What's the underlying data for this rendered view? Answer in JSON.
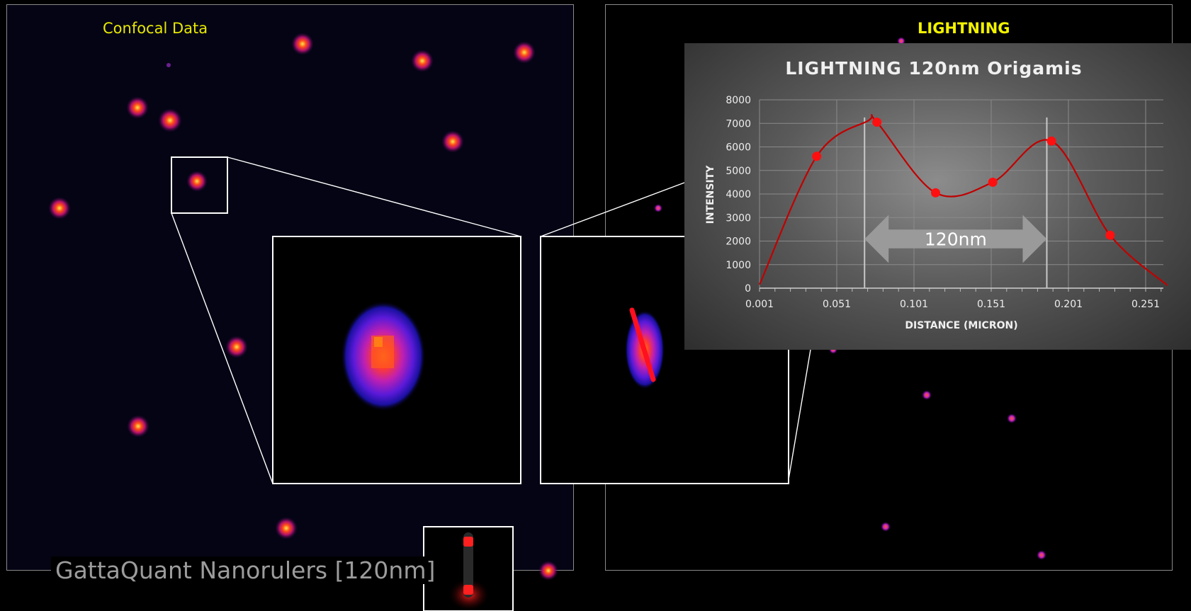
{
  "labels": {
    "left_panel": "Confocal Data",
    "right_panel": "LIGHTNING",
    "footer": "GattaQuant Nanorulers [120nm]"
  },
  "colors": {
    "confocal_label": "#e8e800",
    "lightning_label": "#f2f200",
    "curve": "#c00000",
    "marker": "#ff1010",
    "arrow": "#9a9a9a"
  },
  "chart_data": {
    "type": "line",
    "title": "LIGHTNING 120nm Origamis",
    "xlabel": "DISTANCE (MICRON)",
    "ylabel": "INTENSITY",
    "x_ticks": [
      "0.001",
      "0.051",
      "0.101",
      "0.151",
      "0.201",
      "0.251"
    ],
    "y_ticks": [
      "0",
      "1000",
      "2000",
      "3000",
      "4000",
      "5000",
      "6000",
      "7000",
      "8000"
    ],
    "xlim": [
      0.001,
      0.265
    ],
    "ylim": [
      0,
      8000
    ],
    "grid": true,
    "series": [
      {
        "points": [
          {
            "x": 0.001,
            "y": 150
          },
          {
            "x": 0.038,
            "y": 5600
          },
          {
            "x": 0.071,
            "y": 7100
          },
          {
            "x": 0.077,
            "y": 7050
          },
          {
            "x": 0.115,
            "y": 4050
          },
          {
            "x": 0.152,
            "y": 4500
          },
          {
            "x": 0.19,
            "y": 6250
          },
          {
            "x": 0.228,
            "y": 2250
          },
          {
            "x": 0.265,
            "y": 120
          }
        ],
        "markers": [
          {
            "x": 0.038,
            "y": 5600
          },
          {
            "x": 0.077,
            "y": 7050
          },
          {
            "x": 0.115,
            "y": 4050
          },
          {
            "x": 0.152,
            "y": 4500
          },
          {
            "x": 0.19,
            "y": 6250
          },
          {
            "x": 0.228,
            "y": 2250
          }
        ]
      }
    ],
    "annotations": [
      {
        "text": "120nm",
        "type": "double-arrow",
        "x_start": 0.069,
        "x_end": 0.187,
        "y": 2000
      }
    ],
    "reference_lines_x": [
      0.069,
      0.187
    ]
  }
}
